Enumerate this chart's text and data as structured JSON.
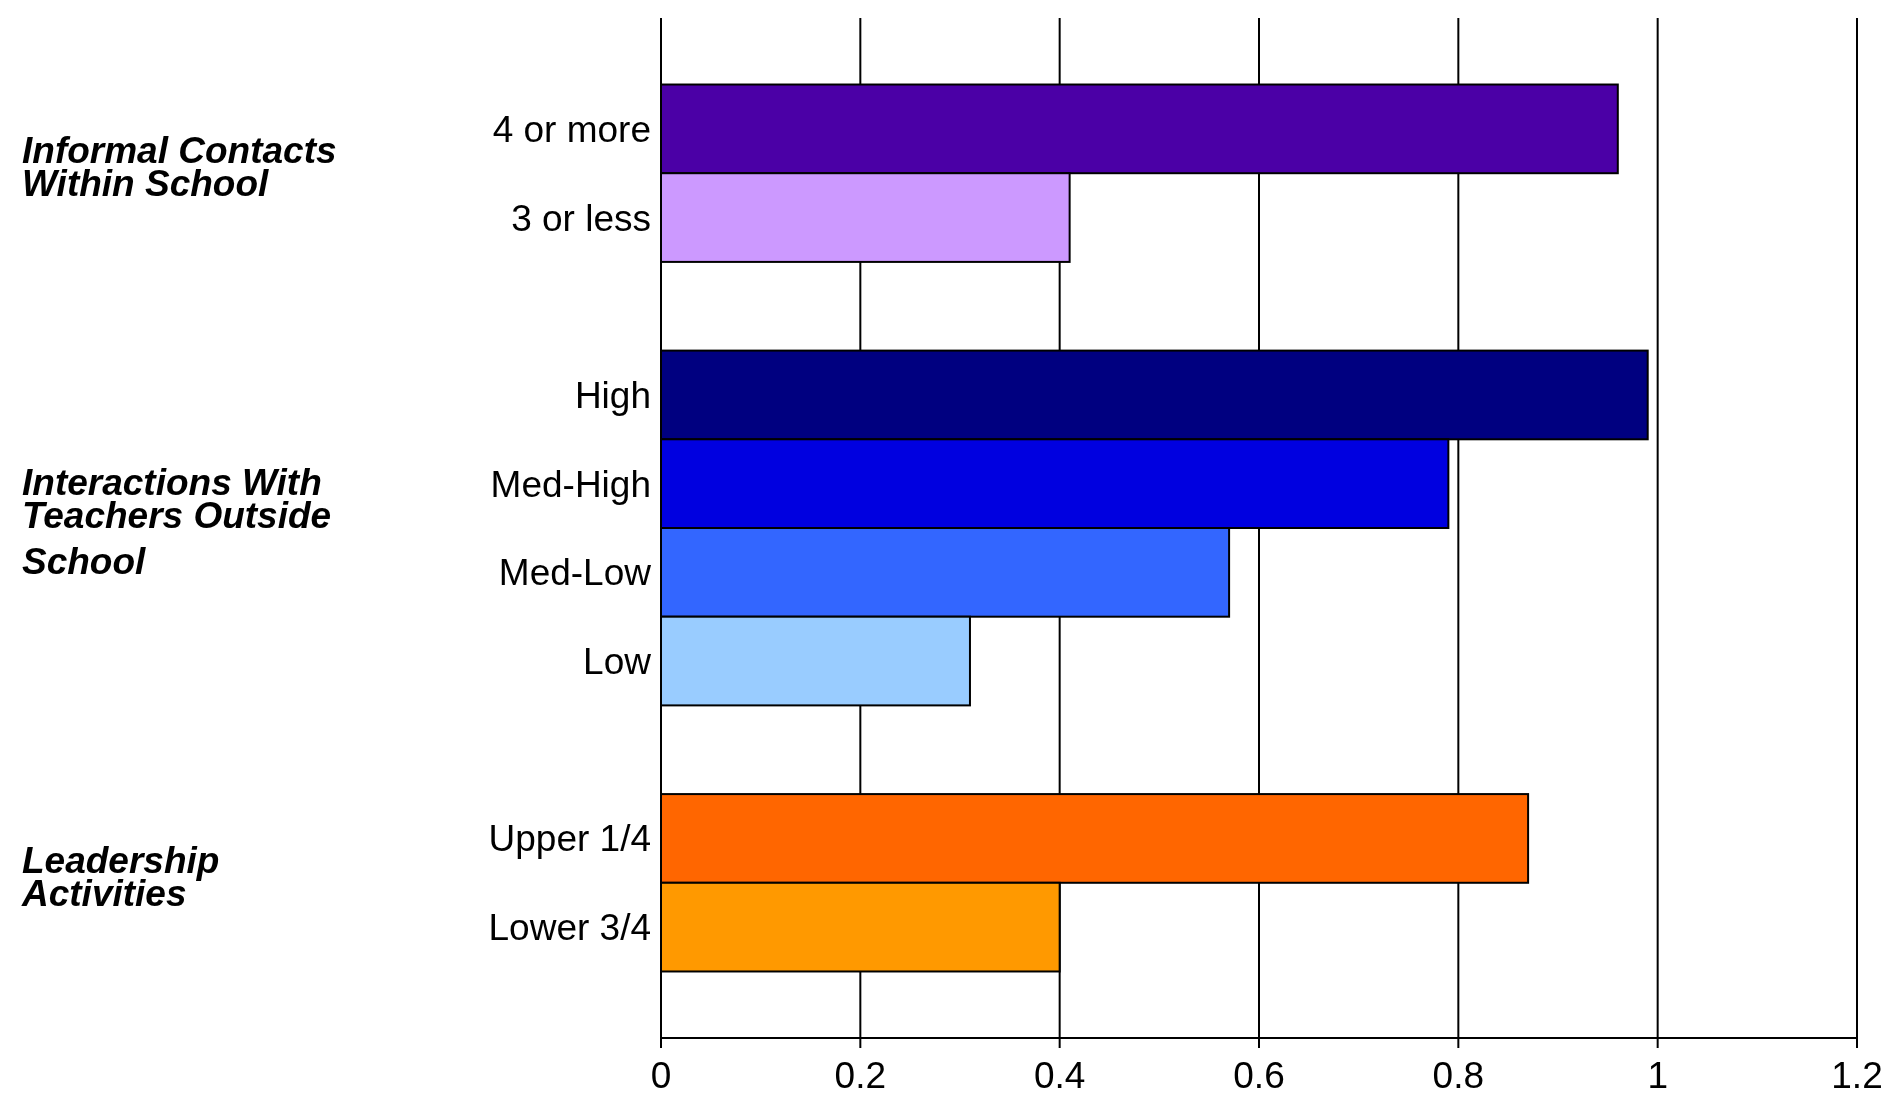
{
  "chart_data": {
    "type": "bar",
    "orientation": "horizontal",
    "categories": [
      "4 or more",
      "3 or less",
      null,
      "High",
      "Med-High",
      "Med-Low",
      "Low",
      null,
      "Upper 1/4",
      "Lower 3/4"
    ],
    "values": [
      0.96,
      0.41,
      null,
      0.99,
      0.79,
      0.57,
      0.31,
      null,
      0.87,
      0.4
    ],
    "colors": [
      "#4b00a6",
      "#cc99ff",
      null,
      "#000080",
      "#0000e0",
      "#3366ff",
      "#99ccff",
      null,
      "#ff6600",
      "#ff9900"
    ],
    "xlim": [
      0,
      1.2
    ],
    "xticks": [
      0,
      0.2,
      0.4,
      0.6,
      0.8,
      1,
      1.2
    ],
    "grid": "x",
    "annotations": [
      "Informal Contacts Within School",
      "Interactions With Teachers Outside School",
      "Leadership Activities"
    ]
  }
}
